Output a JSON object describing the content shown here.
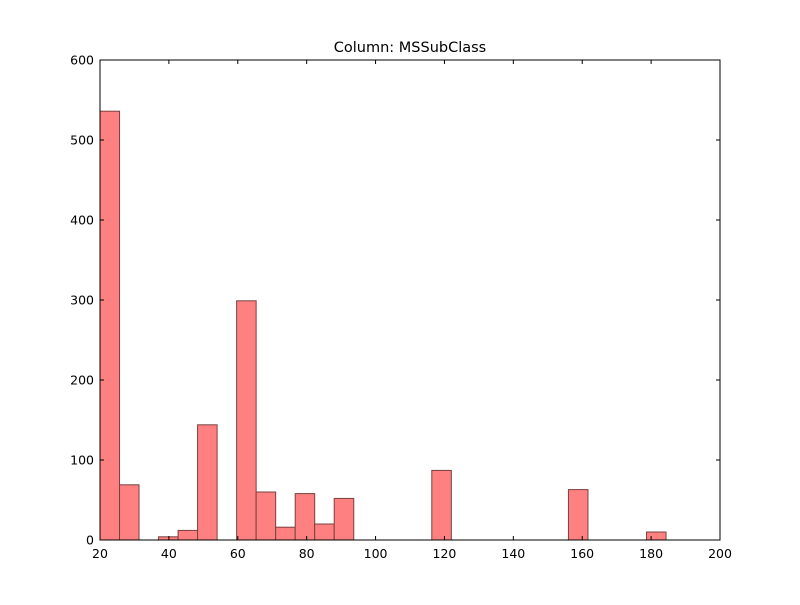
{
  "chart_data": {
    "type": "bar",
    "title": "Column: MSSubClass",
    "xlabel": "",
    "ylabel": "",
    "xlim": [
      20,
      200
    ],
    "ylim": [
      0,
      600
    ],
    "xticks": [
      20,
      40,
      60,
      80,
      100,
      120,
      140,
      160,
      180,
      200
    ],
    "yticks": [
      0,
      100,
      200,
      300,
      400,
      500,
      600
    ],
    "bin_width": 5.67,
    "bins": [
      {
        "start": 20.0,
        "end": 25.67,
        "count": 536
      },
      {
        "start": 25.67,
        "end": 31.33,
        "count": 69
      },
      {
        "start": 37.0,
        "end": 42.67,
        "count": 4
      },
      {
        "start": 42.67,
        "end": 48.33,
        "count": 12
      },
      {
        "start": 48.33,
        "end": 54.0,
        "count": 144
      },
      {
        "start": 59.67,
        "end": 65.33,
        "count": 299
      },
      {
        "start": 65.33,
        "end": 71.0,
        "count": 60
      },
      {
        "start": 71.0,
        "end": 76.67,
        "count": 16
      },
      {
        "start": 76.67,
        "end": 82.33,
        "count": 58
      },
      {
        "start": 82.33,
        "end": 88.0,
        "count": 20
      },
      {
        "start": 88.0,
        "end": 93.67,
        "count": 52
      },
      {
        "start": 116.33,
        "end": 122.0,
        "count": 87
      },
      {
        "start": 156.0,
        "end": 161.67,
        "count": 63
      },
      {
        "start": 178.67,
        "end": 184.33,
        "count": 10
      }
    ],
    "grid": false,
    "colors": {
      "bar_fill": "#ff8080",
      "bar_edge": "#7a4040",
      "axes": "#000000"
    }
  }
}
